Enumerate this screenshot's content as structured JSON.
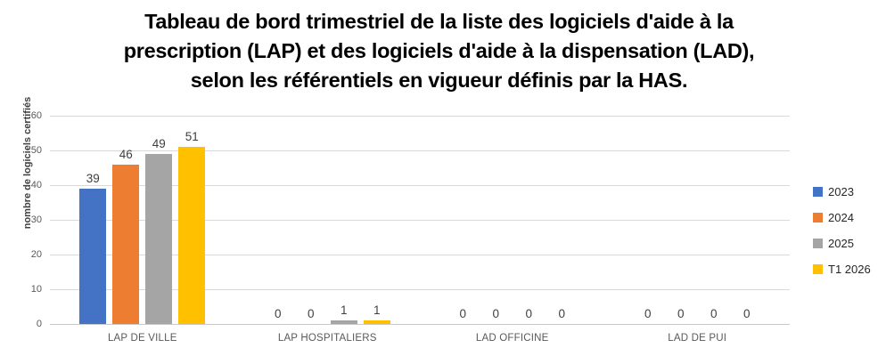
{
  "title": {
    "lines": [
      "Tableau de bord trimestriel de la liste des logiciels d'aide à la",
      "prescription (LAP) et des logiciels d'aide à la dispensation (LAD),",
      "selon les référentiels en vigueur définis par la HAS."
    ]
  },
  "chart_data": {
    "type": "bar",
    "categories": [
      "LAP DE VILLE",
      "LAP HOSPITALIERS",
      "LAD OFFICINE",
      "LAD DE PUI"
    ],
    "series": [
      {
        "name": "2023",
        "color": "#4472C4",
        "values": [
          39,
          0,
          0,
          0
        ]
      },
      {
        "name": "2024",
        "color": "#ED7D31",
        "values": [
          46,
          0,
          0,
          0
        ]
      },
      {
        "name": "2025",
        "color": "#A5A5A5",
        "values": [
          49,
          1,
          0,
          0
        ]
      },
      {
        "name": "T1 2026",
        "color": "#FFC000",
        "values": [
          51,
          1,
          0,
          0
        ]
      }
    ],
    "ylabel": "nombre de logiciels certifiés",
    "xlabel": "",
    "ylim": [
      0,
      60
    ],
    "yticks": [
      0,
      10,
      20,
      30,
      40,
      50,
      60
    ],
    "grid": true,
    "data_labels": true,
    "legend_position": "right"
  },
  "colors": {
    "background": "#FFFFFF",
    "gridline": "#D9D9D9",
    "axis_line": "#C9C9C9",
    "tick_label": "#595959",
    "category_label": "#595959",
    "data_label": "#404040",
    "title": "#000000"
  }
}
